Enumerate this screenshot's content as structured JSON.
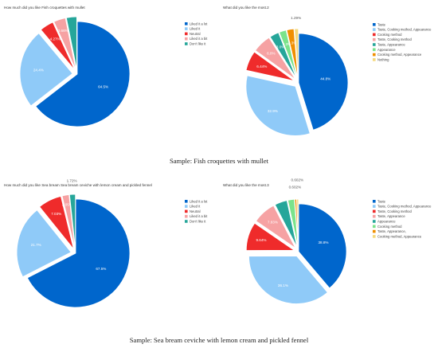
{
  "captions": [
    "Sample: Fish croquettes with mullet",
    "Sample: Sea bream ceviche with lemon cream and pickled fennel"
  ],
  "chart_data": [
    {
      "type": "pie",
      "title": "How much did you like Fish croquettes with mullet",
      "legend_position": "right",
      "slices": [
        {
          "label": "Liked it a lot",
          "value": 64.5,
          "color": "#0066cc",
          "pct_label": "64.5%"
        },
        {
          "label": "Liked it",
          "value": 24.4,
          "color": "#8fcaf8",
          "pct_label": "24.4%"
        },
        {
          "label": "Neutral",
          "value": 4.27,
          "color": "#ef2b2b",
          "pct_label": "4.27%"
        },
        {
          "label": "Liked it a bit",
          "value": 3.66,
          "color": "#f6a2a3",
          "pct_label": "3.66%"
        },
        {
          "label": "Don't like it",
          "value": 3.17,
          "color": "#26a69a",
          "pct_label": ""
        }
      ]
    },
    {
      "type": "pie",
      "title": "What did you like the most.2",
      "legend_position": "right",
      "slices": [
        {
          "label": "Taste",
          "value": 44.8,
          "color": "#0066cc",
          "pct_label": "44.8%"
        },
        {
          "label": "Taste, Cooking method, Appearance",
          "value": 32.9,
          "color": "#8fcaf8",
          "pct_label": "32.9%"
        },
        {
          "label": "Cooking method",
          "value": 6.44,
          "color": "#ef2b2b",
          "pct_label": "6.44%"
        },
        {
          "label": "Taste, Cooking method",
          "value": 6.0,
          "color": "#f6a2a3",
          "pct_label": "6.0%"
        },
        {
          "label": "Taste, Appearance",
          "value": 3.0,
          "color": "#26a69a",
          "pct_label": "3.0%"
        },
        {
          "label": "Appearance",
          "value": 2.3,
          "color": "#7be38b",
          "pct_label": "2.3%"
        },
        {
          "label": "Cooking method, Appearance",
          "value": 2.3,
          "color": "#f08f00",
          "pct_label": "2.3%"
        },
        {
          "label": "Nothing",
          "value": 1.29,
          "color": "#f4d97e",
          "pct_label": "1.29%"
        }
      ]
    },
    {
      "type": "pie",
      "title": "How much did you like Sea bream Sea bream ceviche with lemon cream and pickled fennel",
      "legend_position": "right",
      "slices": [
        {
          "label": "Liked it a lot",
          "value": 67.5,
          "color": "#0066cc",
          "pct_label": "67.5%"
        },
        {
          "label": "Liked it",
          "value": 21.7,
          "color": "#8fcaf8",
          "pct_label": "21.7%"
        },
        {
          "label": "Neutral",
          "value": 7.03,
          "color": "#ef2b2b",
          "pct_label": "7.03%"
        },
        {
          "label": "Liked it a bit",
          "value": 2.05,
          "color": "#f6a2a3",
          "pct_label": "2.05%"
        },
        {
          "label": "Don't like it",
          "value": 1.72,
          "color": "#26a69a",
          "pct_label": "1.72%"
        }
      ]
    },
    {
      "type": "pie",
      "title": "What did you like the most.3",
      "legend_position": "right",
      "slices": [
        {
          "label": "Taste",
          "value": 38.8,
          "color": "#0066cc",
          "pct_label": "38.8%"
        },
        {
          "label": "Taste, Cooking method, Appearance",
          "value": 36.1,
          "color": "#8fcaf8",
          "pct_label": "36.1%"
        },
        {
          "label": "Taste, Cooking method",
          "value": 9.64,
          "color": "#ef2b2b",
          "pct_label": "9.64%"
        },
        {
          "label": "Taste, Appearance",
          "value": 7.83,
          "color": "#f6a2a3",
          "pct_label": "7.83%"
        },
        {
          "label": "Appearance",
          "value": 4.2,
          "color": "#26a69a",
          "pct_label": ""
        },
        {
          "label": "Cooking method",
          "value": 2.2,
          "color": "#7be38b",
          "pct_label": ""
        },
        {
          "label": "Taste, Appearance,",
          "value": 0.602,
          "color": "#f08f00",
          "pct_label": "0.602%"
        },
        {
          "label": "Cooking method, Appearance",
          "value": 0.602,
          "color": "#f4d97e",
          "pct_label": "0.602%"
        }
      ]
    }
  ]
}
